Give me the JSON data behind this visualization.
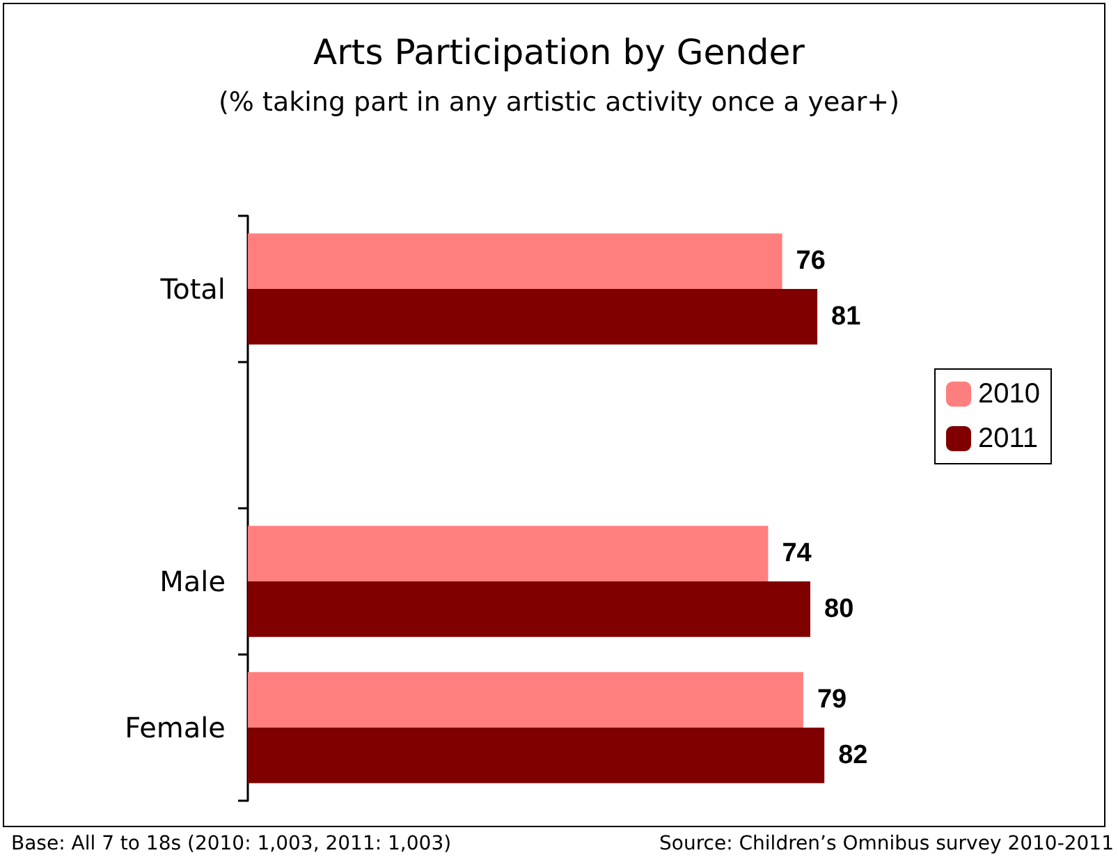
{
  "chart_data": {
    "type": "bar",
    "orientation": "horizontal",
    "title": "Arts Participation by Gender",
    "subtitle": "(% taking part in any artistic activity once a year+)",
    "categories": [
      "Total",
      null,
      "Male",
      "Female"
    ],
    "series": [
      {
        "name": "2010",
        "color": "#ff7f7f",
        "values": [
          76,
          null,
          74,
          79
        ]
      },
      {
        "name": "2011",
        "color": "#800000",
        "values": [
          81,
          null,
          80,
          82
        ]
      }
    ],
    "tick_labels": "y",
    "data_labels": true,
    "legend": "right",
    "annotations": [
      "Base: All 7 to 18s (2010: 1,003, 2011: 1,003)",
      "Source: Children’s Omnibus survey 2010-2011"
    ]
  }
}
